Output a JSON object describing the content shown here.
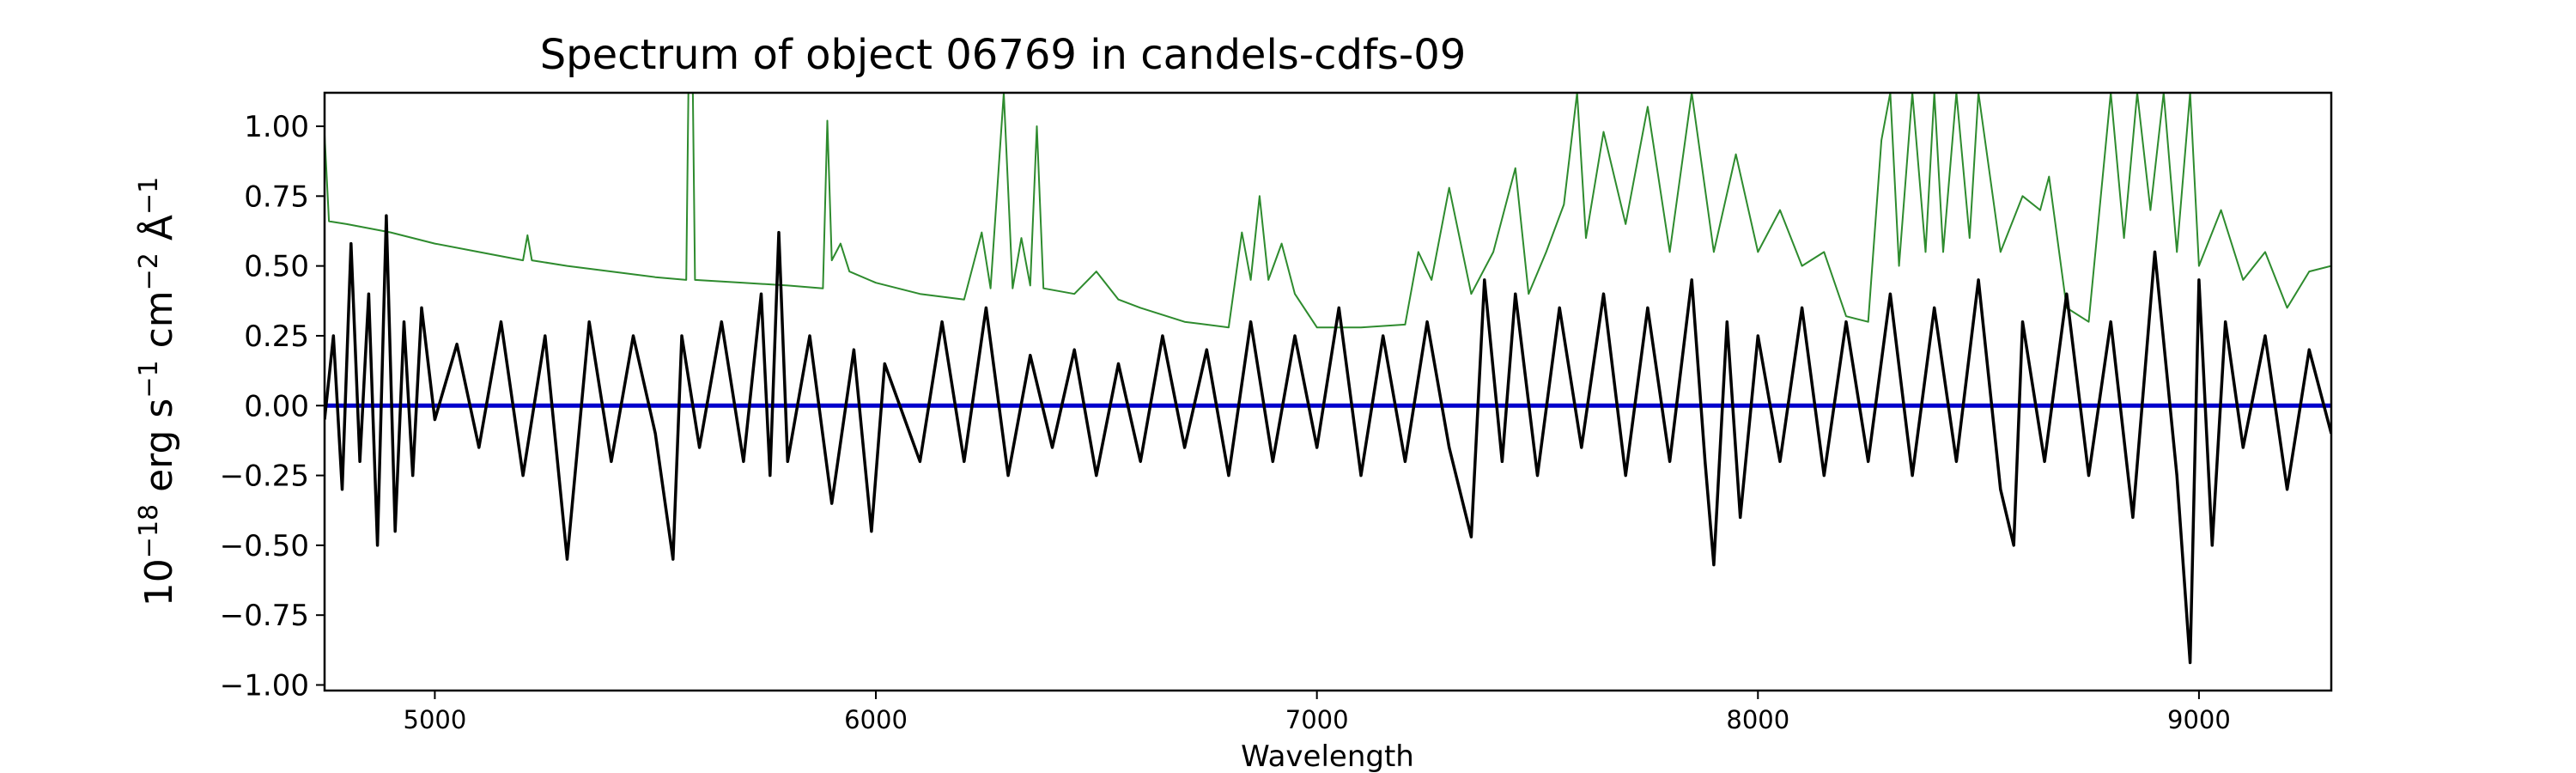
{
  "chart_data": {
    "type": "line",
    "title": "Spectrum of object 06769 in candels-cdfs-09",
    "xlabel": "Wavelength",
    "ylabel": {
      "base": "10",
      "exp1": "−18",
      "t1": " erg s",
      "exp2": "−1",
      "t2": " cm",
      "exp3": "−2",
      "t3": " Å",
      "exp4": "−1"
    },
    "xlim": [
      4750,
      9300
    ],
    "ylim": [
      -1.02,
      1.12
    ],
    "xticks": [
      5000,
      6000,
      7000,
      8000,
      9000
    ],
    "xtick_labels": [
      "5000",
      "6000",
      "7000",
      "8000",
      "9000"
    ],
    "yticks": [
      -1.0,
      -0.75,
      -0.5,
      -0.25,
      0.0,
      0.25,
      0.5,
      0.75,
      1.0
    ],
    "ytick_labels": [
      "−1.00",
      "−0.75",
      "−0.50",
      "−0.25",
      "0.00",
      "0.25",
      "0.50",
      "0.75",
      "1.00"
    ],
    "grid": false,
    "series": [
      {
        "key": "sky_noise",
        "color": "#2e8b2e",
        "points": [
          [
            4750,
            0.97
          ],
          [
            4760,
            0.66
          ],
          [
            4800,
            0.65
          ],
          [
            4900,
            0.62
          ],
          [
            5000,
            0.58
          ],
          [
            5100,
            0.55
          ],
          [
            5200,
            0.52
          ],
          [
            5210,
            0.61
          ],
          [
            5220,
            0.52
          ],
          [
            5300,
            0.5
          ],
          [
            5400,
            0.48
          ],
          [
            5500,
            0.46
          ],
          [
            5570,
            0.45
          ],
          [
            5575,
            1.12
          ],
          [
            5585,
            1.12
          ],
          [
            5590,
            0.45
          ],
          [
            5700,
            0.44
          ],
          [
            5800,
            0.43
          ],
          [
            5880,
            0.42
          ],
          [
            5890,
            1.02
          ],
          [
            5900,
            0.52
          ],
          [
            5920,
            0.58
          ],
          [
            5940,
            0.48
          ],
          [
            6000,
            0.44
          ],
          [
            6100,
            0.4
          ],
          [
            6200,
            0.38
          ],
          [
            6240,
            0.62
          ],
          [
            6260,
            0.42
          ],
          [
            6290,
            1.12
          ],
          [
            6310,
            0.42
          ],
          [
            6330,
            0.6
          ],
          [
            6350,
            0.43
          ],
          [
            6365,
            1.0
          ],
          [
            6380,
            0.42
          ],
          [
            6450,
            0.4
          ],
          [
            6500,
            0.48
          ],
          [
            6550,
            0.38
          ],
          [
            6600,
            0.35
          ],
          [
            6700,
            0.3
          ],
          [
            6800,
            0.28
          ],
          [
            6830,
            0.62
          ],
          [
            6850,
            0.45
          ],
          [
            6870,
            0.75
          ],
          [
            6890,
            0.45
          ],
          [
            6920,
            0.58
          ],
          [
            6950,
            0.4
          ],
          [
            7000,
            0.28
          ],
          [
            7100,
            0.28
          ],
          [
            7200,
            0.29
          ],
          [
            7230,
            0.55
          ],
          [
            7260,
            0.45
          ],
          [
            7300,
            0.78
          ],
          [
            7350,
            0.4
          ],
          [
            7400,
            0.55
          ],
          [
            7450,
            0.85
          ],
          [
            7480,
            0.4
          ],
          [
            7520,
            0.55
          ],
          [
            7560,
            0.72
          ],
          [
            7590,
            1.12
          ],
          [
            7610,
            0.6
          ],
          [
            7650,
            0.98
          ],
          [
            7700,
            0.65
          ],
          [
            7750,
            1.07
          ],
          [
            7800,
            0.55
          ],
          [
            7850,
            1.12
          ],
          [
            7900,
            0.55
          ],
          [
            7950,
            0.9
          ],
          [
            8000,
            0.55
          ],
          [
            8050,
            0.7
          ],
          [
            8100,
            0.5
          ],
          [
            8150,
            0.55
          ],
          [
            8200,
            0.32
          ],
          [
            8250,
            0.3
          ],
          [
            8280,
            0.95
          ],
          [
            8300,
            1.12
          ],
          [
            8320,
            0.5
          ],
          [
            8350,
            1.12
          ],
          [
            8380,
            0.55
          ],
          [
            8400,
            1.12
          ],
          [
            8420,
            0.55
          ],
          [
            8450,
            1.12
          ],
          [
            8480,
            0.6
          ],
          [
            8500,
            1.12
          ],
          [
            8550,
            0.55
          ],
          [
            8600,
            0.75
          ],
          [
            8640,
            0.7
          ],
          [
            8660,
            0.82
          ],
          [
            8700,
            0.35
          ],
          [
            8750,
            0.3
          ],
          [
            8800,
            1.12
          ],
          [
            8830,
            0.6
          ],
          [
            8860,
            1.12
          ],
          [
            8890,
            0.7
          ],
          [
            8920,
            1.12
          ],
          [
            8950,
            0.55
          ],
          [
            8980,
            1.12
          ],
          [
            9000,
            0.5
          ],
          [
            9050,
            0.7
          ],
          [
            9100,
            0.45
          ],
          [
            9150,
            0.55
          ],
          [
            9200,
            0.35
          ],
          [
            9250,
            0.48
          ],
          [
            9300,
            0.5
          ]
        ]
      },
      {
        "key": "zero_line",
        "color": "#0000cc",
        "points": [
          [
            4750,
            0.0
          ],
          [
            9300,
            0.0
          ]
        ]
      },
      {
        "key": "flux",
        "color": "#000000",
        "points": [
          [
            4750,
            -0.05
          ],
          [
            4770,
            0.25
          ],
          [
            4790,
            -0.3
          ],
          [
            4810,
            0.58
          ],
          [
            4830,
            -0.2
          ],
          [
            4850,
            0.4
          ],
          [
            4870,
            -0.5
          ],
          [
            4890,
            0.68
          ],
          [
            4910,
            -0.45
          ],
          [
            4930,
            0.3
          ],
          [
            4950,
            -0.25
          ],
          [
            4970,
            0.35
          ],
          [
            5000,
            -0.05
          ],
          [
            5050,
            0.22
          ],
          [
            5100,
            -0.15
          ],
          [
            5150,
            0.3
          ],
          [
            5200,
            -0.25
          ],
          [
            5250,
            0.25
          ],
          [
            5300,
            -0.55
          ],
          [
            5350,
            0.3
          ],
          [
            5400,
            -0.2
          ],
          [
            5450,
            0.25
          ],
          [
            5500,
            -0.1
          ],
          [
            5540,
            -0.55
          ],
          [
            5560,
            0.25
          ],
          [
            5600,
            -0.15
          ],
          [
            5650,
            0.3
          ],
          [
            5700,
            -0.2
          ],
          [
            5740,
            0.4
          ],
          [
            5760,
            -0.25
          ],
          [
            5780,
            0.62
          ],
          [
            5800,
            -0.2
          ],
          [
            5850,
            0.25
          ],
          [
            5900,
            -0.35
          ],
          [
            5950,
            0.2
          ],
          [
            5990,
            -0.45
          ],
          [
            6020,
            0.15
          ],
          [
            6100,
            -0.2
          ],
          [
            6150,
            0.3
          ],
          [
            6200,
            -0.2
          ],
          [
            6250,
            0.35
          ],
          [
            6300,
            -0.25
          ],
          [
            6350,
            0.18
          ],
          [
            6400,
            -0.15
          ],
          [
            6450,
            0.2
          ],
          [
            6500,
            -0.25
          ],
          [
            6550,
            0.15
          ],
          [
            6600,
            -0.2
          ],
          [
            6650,
            0.25
          ],
          [
            6700,
            -0.15
          ],
          [
            6750,
            0.2
          ],
          [
            6800,
            -0.25
          ],
          [
            6850,
            0.3
          ],
          [
            6900,
            -0.2
          ],
          [
            6950,
            0.25
          ],
          [
            7000,
            -0.15
          ],
          [
            7050,
            0.35
          ],
          [
            7100,
            -0.25
          ],
          [
            7150,
            0.25
          ],
          [
            7200,
            -0.2
          ],
          [
            7250,
            0.3
          ],
          [
            7300,
            -0.15
          ],
          [
            7350,
            -0.47
          ],
          [
            7380,
            0.45
          ],
          [
            7420,
            -0.2
          ],
          [
            7450,
            0.4
          ],
          [
            7500,
            -0.25
          ],
          [
            7550,
            0.35
          ],
          [
            7600,
            -0.15
          ],
          [
            7650,
            0.4
          ],
          [
            7700,
            -0.25
          ],
          [
            7750,
            0.35
          ],
          [
            7800,
            -0.2
          ],
          [
            7850,
            0.45
          ],
          [
            7880,
            -0.2
          ],
          [
            7900,
            -0.57
          ],
          [
            7930,
            0.3
          ],
          [
            7960,
            -0.4
          ],
          [
            8000,
            0.25
          ],
          [
            8050,
            -0.2
          ],
          [
            8100,
            0.35
          ],
          [
            8150,
            -0.25
          ],
          [
            8200,
            0.3
          ],
          [
            8250,
            -0.2
          ],
          [
            8300,
            0.4
          ],
          [
            8350,
            -0.25
          ],
          [
            8400,
            0.35
          ],
          [
            8450,
            -0.2
          ],
          [
            8500,
            0.45
          ],
          [
            8550,
            -0.3
          ],
          [
            8580,
            -0.5
          ],
          [
            8600,
            0.3
          ],
          [
            8650,
            -0.2
          ],
          [
            8700,
            0.4
          ],
          [
            8750,
            -0.25
          ],
          [
            8800,
            0.3
          ],
          [
            8850,
            -0.4
          ],
          [
            8900,
            0.55
          ],
          [
            8950,
            -0.25
          ],
          [
            8980,
            -0.92
          ],
          [
            9000,
            0.45
          ],
          [
            9030,
            -0.5
          ],
          [
            9060,
            0.3
          ],
          [
            9100,
            -0.15
          ],
          [
            9150,
            0.25
          ],
          [
            9200,
            -0.3
          ],
          [
            9250,
            0.2
          ],
          [
            9300,
            -0.1
          ]
        ]
      }
    ]
  }
}
